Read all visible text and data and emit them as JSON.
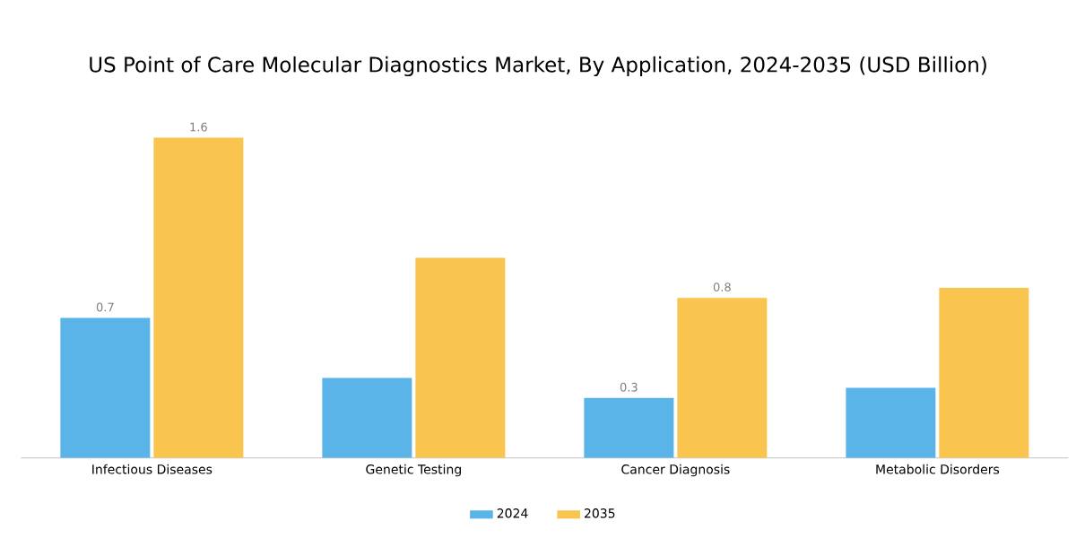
{
  "chart_data": {
    "type": "bar",
    "title": "US Point of Care Molecular Diagnostics Market, By Application, 2024-2035 (USD Billion)",
    "categories": [
      "Infectious Diseases",
      "Genetic Testing",
      "Cancer Diagnosis",
      "Metabolic Disorders"
    ],
    "series": [
      {
        "name": "2024",
        "color": "#5ab4e8",
        "values": [
          0.7,
          0.4,
          0.3,
          0.35
        ],
        "value_labels": [
          "0.7",
          null,
          "0.3",
          null
        ]
      },
      {
        "name": "2035",
        "color": "#f9c54e",
        "values": [
          1.6,
          1.0,
          0.8,
          0.85
        ],
        "value_labels": [
          "1.6",
          null,
          "0.8",
          null
        ]
      }
    ],
    "legend": "bottom"
  }
}
